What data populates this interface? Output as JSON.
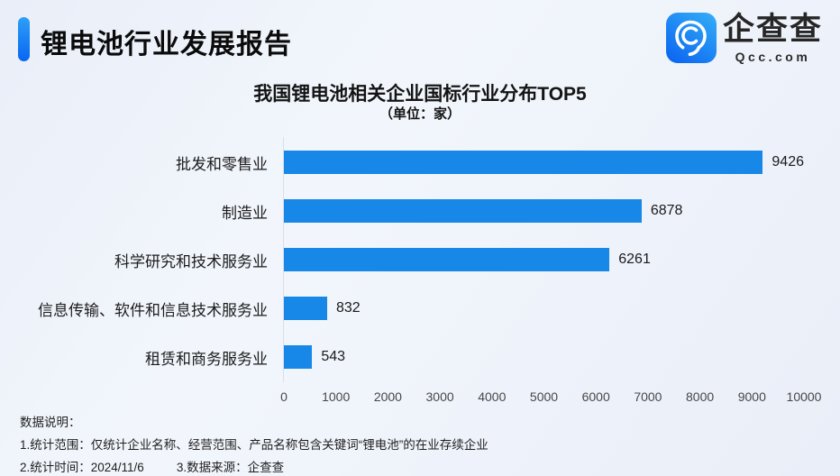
{
  "header": {
    "title": "锂电池行业发展报告"
  },
  "logo": {
    "name": "企查查",
    "domain": "Qcc.com"
  },
  "chart_data": {
    "type": "bar",
    "orientation": "horizontal",
    "title": "我国锂电池相关企业国标行业分布TOP5",
    "subtitle": "（单位：家）",
    "unit": "家",
    "categories": [
      "批发和零售业",
      "制造业",
      "科学研究和技术服务业",
      "信息传输、软件和信息技术服务业",
      "租赁和商务服务业"
    ],
    "values": [
      9426,
      6878,
      6261,
      832,
      543
    ],
    "xlim": [
      0,
      10000
    ],
    "x_ticks": [
      "0",
      "1000",
      "2000",
      "3000",
      "4000",
      "5000",
      "6000",
      "7000",
      "8000",
      "9000",
      "10000"
    ],
    "bar_color": "#1787e8",
    "grid": false,
    "legend": "none",
    "value_labels": "outside-end"
  },
  "footer": {
    "label": "数据说明：",
    "note_scope": "1.统计范围：仅统计企业名称、经营范围、产品名称包含关键词“锂电池”的在业存续企业",
    "note_time": "2.统计时间：2024/11/6",
    "note_source": "3.数据来源：企查查"
  },
  "colors": {
    "bar": "#1787e8",
    "accent_top": "#2e9ff8",
    "accent_bottom": "#0866f2",
    "background": "#edf1f9",
    "text": "#141414"
  }
}
